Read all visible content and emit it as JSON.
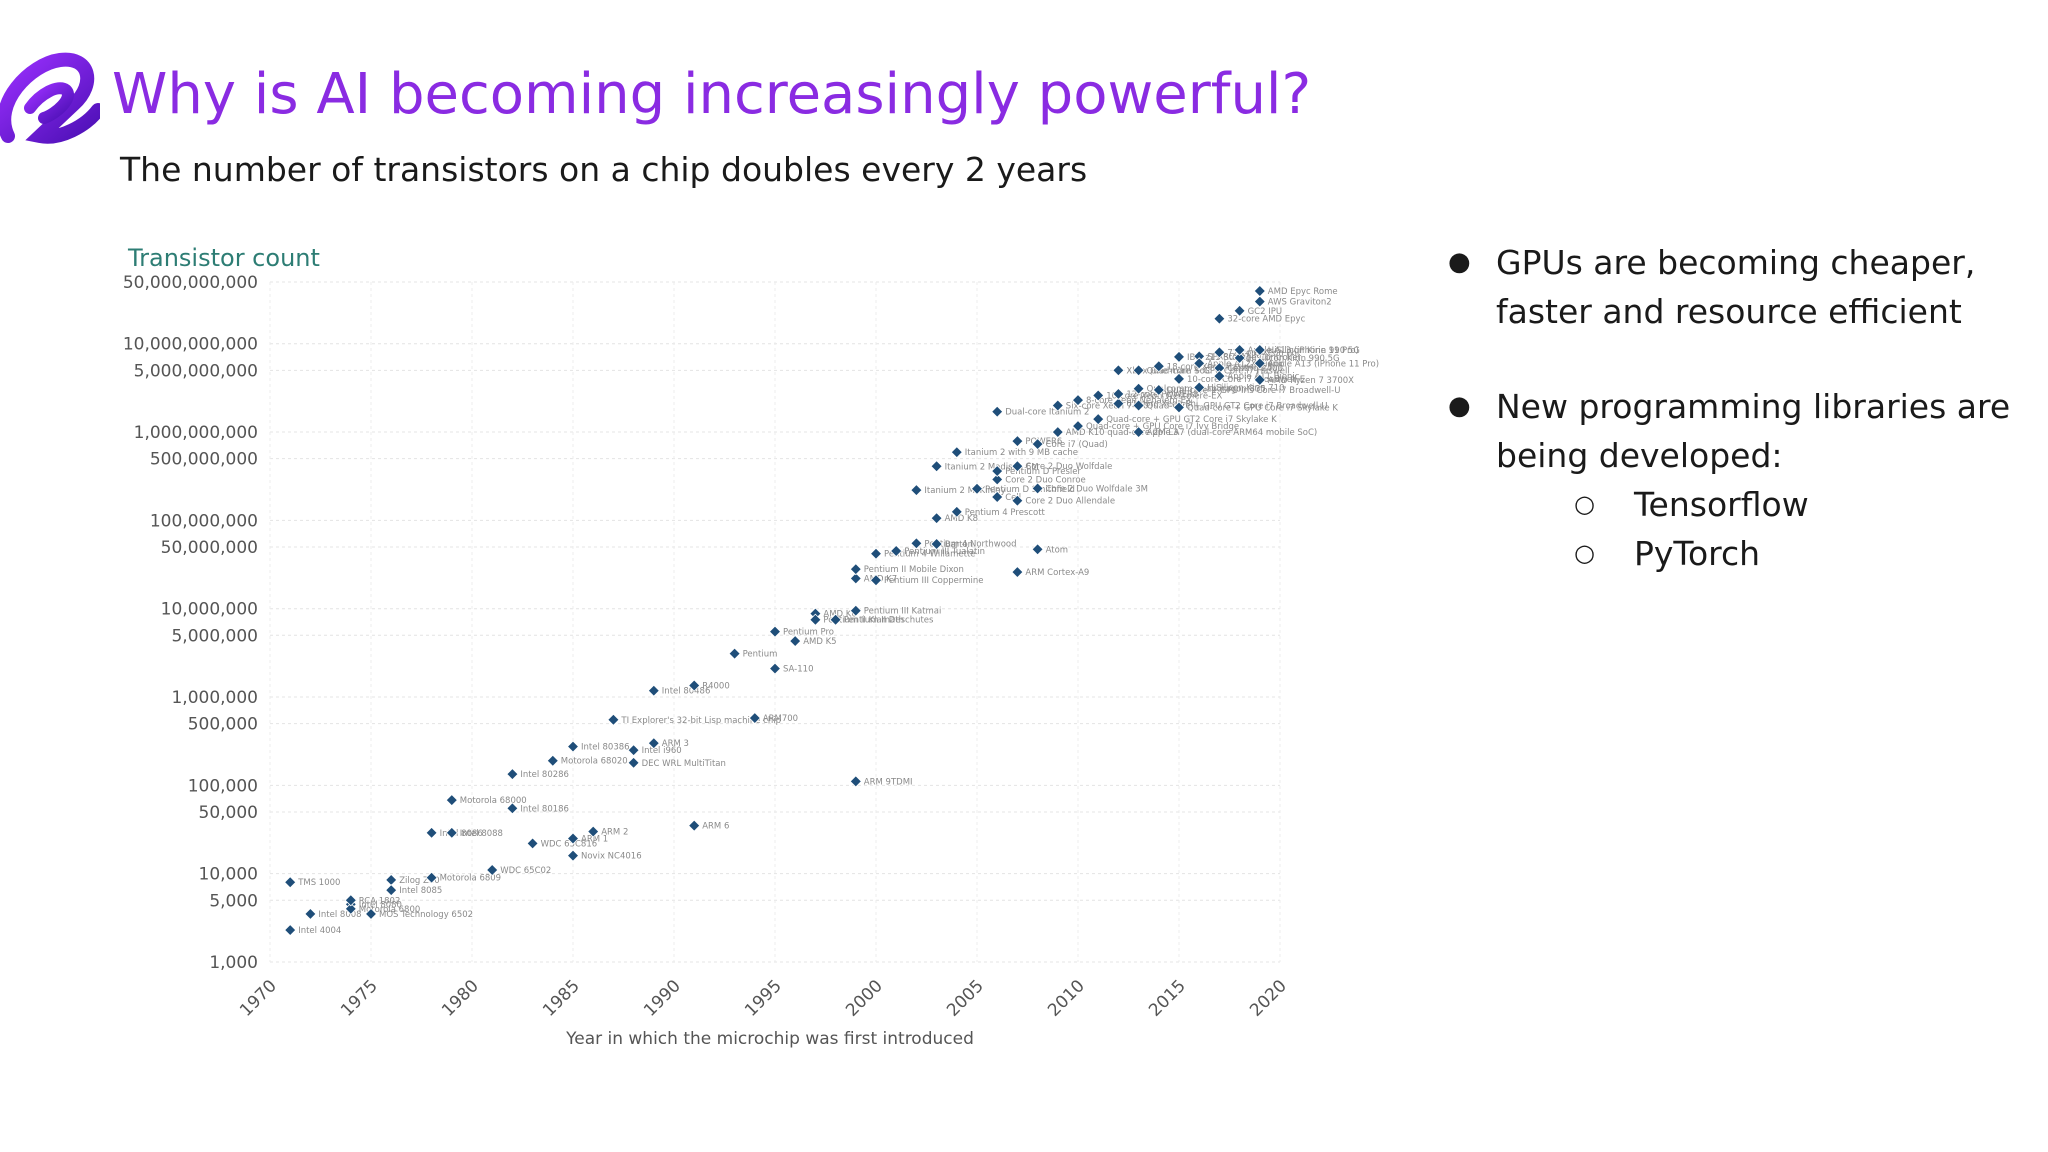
{
  "slide": {
    "title": "Why is AI becoming increasingly powerful?",
    "subtitle": "The number of transistors on a chip doubles every 2 years",
    "accent_color": "#8a2be2",
    "logo_icon": "brand-logo-icon"
  },
  "bullets": [
    {
      "text": "GPUs are becoming cheaper, faster and resource efficient"
    },
    {
      "text": "New programming libraries are being developed:",
      "sub_items": [
        "Tensorflow",
        "PyTorch"
      ]
    }
  ],
  "chart_data": {
    "type": "scatter",
    "title": "Transistor count",
    "xlabel": "Year in which the microchip was first introduced",
    "ylabel": "",
    "yscale": "log",
    "xlim": [
      1970,
      2020
    ],
    "ylim": [
      1000,
      50000000000
    ],
    "grid": true,
    "marker_color": "#1f4e79",
    "x_ticks": [
      1970,
      1975,
      1980,
      1985,
      1990,
      1995,
      2000,
      2005,
      2010,
      2015,
      2020
    ],
    "y_ticks": [
      {
        "value": 50000000000,
        "label": "50,000,000,000"
      },
      {
        "value": 10000000000,
        "label": "10,000,000,000"
      },
      {
        "value": 5000000000,
        "label": "5,000,000,000"
      },
      {
        "value": 1000000000,
        "label": "1,000,000,000"
      },
      {
        "value": 500000000,
        "label": "500,000,000"
      },
      {
        "value": 100000000,
        "label": "100,000,000"
      },
      {
        "value": 50000000,
        "label": "50,000,000"
      },
      {
        "value": 10000000,
        "label": "10,000,000"
      },
      {
        "value": 5000000,
        "label": "5,000,000"
      },
      {
        "value": 1000000,
        "label": "1,000,000"
      },
      {
        "value": 500000,
        "label": "500,000"
      },
      {
        "value": 100000,
        "label": "100,000"
      },
      {
        "value": 50000,
        "label": "50,000"
      },
      {
        "value": 10000,
        "label": "10,000"
      },
      {
        "value": 5000,
        "label": "5,000"
      },
      {
        "value": 1000,
        "label": "1,000"
      }
    ],
    "points": [
      {
        "x": 1971,
        "y": 2300,
        "label": "Intel 4004"
      },
      {
        "x": 1972,
        "y": 3500,
        "label": "Intel 8008"
      },
      {
        "x": 1971,
        "y": 8000,
        "label": "TMS 1000"
      },
      {
        "x": 1974,
        "y": 4500,
        "label": "Intel 8080"
      },
      {
        "x": 1974,
        "y": 4000,
        "label": "Motorola 6800"
      },
      {
        "x": 1975,
        "y": 3500,
        "label": "MOS Technology 6502"
      },
      {
        "x": 1974,
        "y": 5000,
        "label": "RCA 1802"
      },
      {
        "x": 1976,
        "y": 8500,
        "label": "Zilog Z80"
      },
      {
        "x": 1976,
        "y": 6500,
        "label": "Intel 8085"
      },
      {
        "x": 1978,
        "y": 29000,
        "label": "Intel 8086"
      },
      {
        "x": 1979,
        "y": 29000,
        "label": "Intel 8088"
      },
      {
        "x": 1979,
        "y": 68000,
        "label": "Motorola 68000"
      },
      {
        "x": 1978,
        "y": 9000,
        "label": "Motorola 6809"
      },
      {
        "x": 1981,
        "y": 11000,
        "label": "WDC 65C02"
      },
      {
        "x": 1982,
        "y": 55000,
        "label": "Intel 80186"
      },
      {
        "x": 1982,
        "y": 134000,
        "label": "Intel 80286"
      },
      {
        "x": 1983,
        "y": 22000,
        "label": "WDC 65C816"
      },
      {
        "x": 1984,
        "y": 190000,
        "label": "Motorola 68020"
      },
      {
        "x": 1985,
        "y": 275000,
        "label": "Intel 80386"
      },
      {
        "x": 1985,
        "y": 25000,
        "label": "ARM 1"
      },
      {
        "x": 1985,
        "y": 16000,
        "label": "Novix NC4016"
      },
      {
        "x": 1986,
        "y": 30000,
        "label": "ARM 2"
      },
      {
        "x": 1987,
        "y": 553000,
        "label": "TI Explorer's 32-bit Lisp machine chip"
      },
      {
        "x": 1988,
        "y": 250000,
        "label": "Intel i960"
      },
      {
        "x": 1988,
        "y": 180000,
        "label": "DEC WRL MultiTitan"
      },
      {
        "x": 1989,
        "y": 300000,
        "label": "ARM 3"
      },
      {
        "x": 1989,
        "y": 1180000,
        "label": "Intel 80486"
      },
      {
        "x": 1991,
        "y": 1350000,
        "label": "R4000"
      },
      {
        "x": 1991,
        "y": 35000,
        "label": "ARM 6"
      },
      {
        "x": 1993,
        "y": 3100000,
        "label": "Pentium"
      },
      {
        "x": 1994,
        "y": 578000,
        "label": "ARM700"
      },
      {
        "x": 1995,
        "y": 2100000,
        "label": "SA-110"
      },
      {
        "x": 1995,
        "y": 5500000,
        "label": "Pentium Pro"
      },
      {
        "x": 1996,
        "y": 4300000,
        "label": "AMD K5"
      },
      {
        "x": 1997,
        "y": 8800000,
        "label": "AMD K6"
      },
      {
        "x": 1997,
        "y": 7500000,
        "label": "Pentium II Klamath"
      },
      {
        "x": 1998,
        "y": 7500000,
        "label": "Pentium II Deschutes"
      },
      {
        "x": 1999,
        "y": 9500000,
        "label": "Pentium III Katmai"
      },
      {
        "x": 1999,
        "y": 111000,
        "label": "ARM 9TDMI"
      },
      {
        "x": 1999,
        "y": 22000000,
        "label": "AMD K7"
      },
      {
        "x": 1999,
        "y": 28000000,
        "label": "Pentium II Mobile Dixon"
      },
      {
        "x": 2000,
        "y": 21000000,
        "label": "Pentium III Coppermine"
      },
      {
        "x": 2000,
        "y": 42000000,
        "label": "Pentium 4 Willamette"
      },
      {
        "x": 2001,
        "y": 45000000,
        "label": "Pentium III Tualatin"
      },
      {
        "x": 2002,
        "y": 55000000,
        "label": "Pentium 4 Northwood"
      },
      {
        "x": 2003,
        "y": 54000000,
        "label": "Barton"
      },
      {
        "x": 2003,
        "y": 105800000,
        "label": "AMD K8"
      },
      {
        "x": 2004,
        "y": 125000000,
        "label": "Pentium 4 Prescott"
      },
      {
        "x": 2002,
        "y": 220000000,
        "label": "Itanium 2 McKinley"
      },
      {
        "x": 2003,
        "y": 410000000,
        "label": "Itanium 2 Madison 6M"
      },
      {
        "x": 2004,
        "y": 592000000,
        "label": "Itanium 2 with 9 MB cache"
      },
      {
        "x": 2005,
        "y": 228000000,
        "label": "Pentium D Smithfield"
      },
      {
        "x": 2006,
        "y": 291000000,
        "label": "Core 2 Duo Conroe"
      },
      {
        "x": 2006,
        "y": 362000000,
        "label": "Pentium D Presler"
      },
      {
        "x": 2006,
        "y": 184000000,
        "label": "Cell"
      },
      {
        "x": 2007,
        "y": 167000000,
        "label": "Core 2 Duo Allendale"
      },
      {
        "x": 2008,
        "y": 230000000,
        "label": "Core 2 Duo Wolfdale 3M"
      },
      {
        "x": 2007,
        "y": 411000000,
        "label": "Core 2 Duo Wolfdale"
      },
      {
        "x": 2007,
        "y": 789000000,
        "label": "POWER6"
      },
      {
        "x": 2008,
        "y": 731000000,
        "label": "Core i7 (Quad)"
      },
      {
        "x": 2008,
        "y": 47000000,
        "label": "Atom"
      },
      {
        "x": 2007,
        "y": 26000000,
        "label": "ARM Cortex-A9"
      },
      {
        "x": 2006,
        "y": 1700000000,
        "label": "Dual-core Itanium 2"
      },
      {
        "x": 2009,
        "y": 1000000000,
        "label": "AMD K10 quad-core 2M L3"
      },
      {
        "x": 2009,
        "y": 2000000000,
        "label": "Six-core Xeon 7400"
      },
      {
        "x": 2010,
        "y": 2300000000,
        "label": "8-core Xeon Nehalem-EX"
      },
      {
        "x": 2010,
        "y": 1170000000,
        "label": "Quad-core + GPU Core i7 Ivy Bridge"
      },
      {
        "x": 2011,
        "y": 2600000000,
        "label": "10-core Xeon Westmere-EX"
      },
      {
        "x": 2011,
        "y": 1400000000,
        "label": "Quad-core + GPU GT2 Core i7 Skylake K"
      },
      {
        "x": 2012,
        "y": 2100000000,
        "label": "61-core Xeon Phi"
      },
      {
        "x": 2012,
        "y": 2700000000,
        "label": "12-core POWER8"
      },
      {
        "x": 2012,
        "y": 5000000000,
        "label": "Xbox One main SoC"
      },
      {
        "x": 2013,
        "y": 5000000000,
        "label": "Quad-core + GPU Core i7 Haswell"
      },
      {
        "x": 2013,
        "y": 3100000000,
        "label": "Qualcomm Snapdragon 835"
      },
      {
        "x": 2013,
        "y": 2000000000,
        "label": "Quad-core + GPU GT2 Core i7 Broadwell-U"
      },
      {
        "x": 2013,
        "y": 1000000000,
        "label": "Apple A7 (dual-core ARM64 mobile SoC)"
      },
      {
        "x": 2014,
        "y": 5560000000,
        "label": "18-core Xeon Haswell-E5"
      },
      {
        "x": 2014,
        "y": 3000000000,
        "label": "Dual-core + GPU Iris Core i7 Broadwell-U"
      },
      {
        "x": 2015,
        "y": 7100000000,
        "label": "IBM z13 Storage Controller"
      },
      {
        "x": 2015,
        "y": 4000000000,
        "label": "10-core Core i7 Broadwell-E"
      },
      {
        "x": 2015,
        "y": 1900000000,
        "label": "Quad-core + GPU Core i7 Skylake K"
      },
      {
        "x": 2016,
        "y": 7200000000,
        "label": "SPARC M7"
      },
      {
        "x": 2016,
        "y": 3200000000,
        "label": "HiSilicon Kirin 710"
      },
      {
        "x": 2016,
        "y": 6000000000,
        "label": "Apple A12X Bionic"
      },
      {
        "x": 2017,
        "y": 8000000000,
        "label": "72-core Xeon Phi"
      },
      {
        "x": 2017,
        "y": 5300000000,
        "label": "Centriq 2400"
      },
      {
        "x": 2017,
        "y": 4300000000,
        "label": "Apple A11 Bionic"
      },
      {
        "x": 2017,
        "y": 19200000000,
        "label": "32-core AMD Epyc"
      },
      {
        "x": 2018,
        "y": 6900000000,
        "label": "HiSilicon Kirin 990 5G"
      },
      {
        "x": 2018,
        "y": 23600000000,
        "label": "GC2 IPU"
      },
      {
        "x": 2018,
        "y": 8500000000,
        "label": "Apple A13 (iPhone 11 Pro)"
      },
      {
        "x": 2019,
        "y": 8500000000,
        "label": "HiSilicon Kirin 990 5G"
      },
      {
        "x": 2019,
        "y": 6000000000,
        "label": "Apple A13 (iPhone 11 Pro)"
      },
      {
        "x": 2019,
        "y": 3900000000,
        "label": "AMD Ryzen 7 3700X"
      },
      {
        "x": 2019,
        "y": 30000000000,
        "label": "AWS Graviton2"
      },
      {
        "x": 2019,
        "y": 39540000000,
        "label": "AMD Epyc Rome"
      }
    ]
  }
}
